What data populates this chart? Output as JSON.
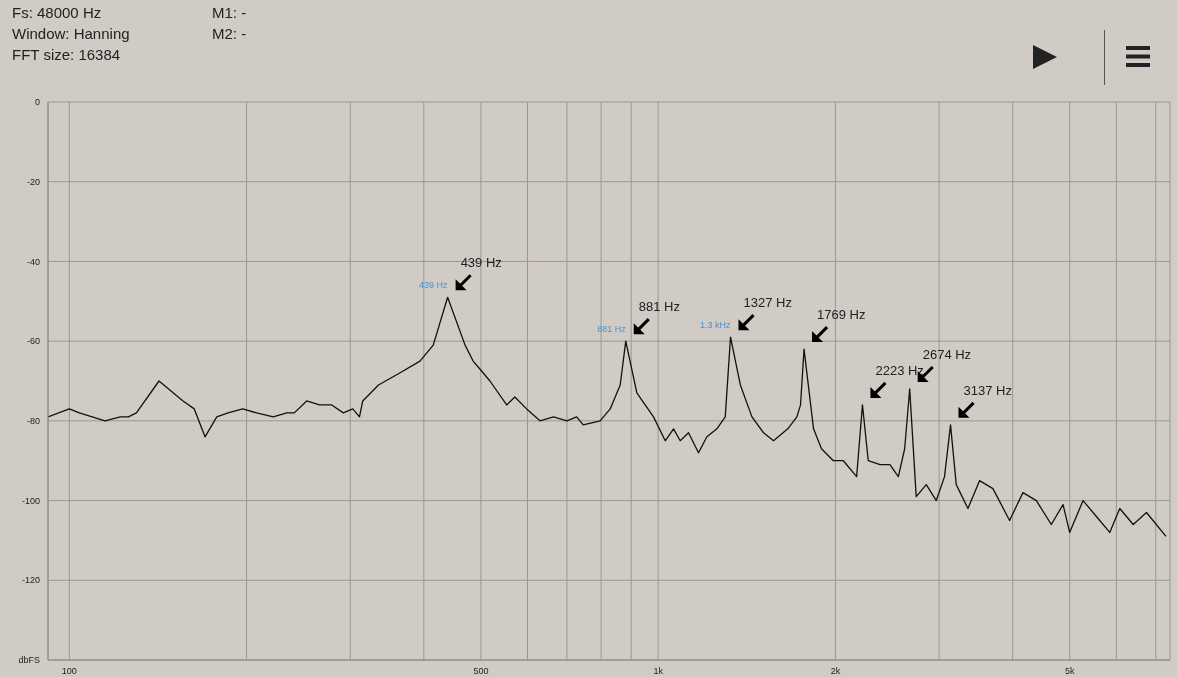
{
  "chart_data": {
    "type": "line",
    "log": "x",
    "grid": true,
    "xlim": [
      92,
      7400
    ],
    "xticks": [
      100,
      {
        "value": 200,
        "label": null
      },
      {
        "value": 300,
        "label": null
      },
      {
        "value": 400,
        "label": null
      },
      500,
      {
        "value": 600,
        "label": null
      },
      {
        "value": 700,
        "label": null
      },
      {
        "value": 800,
        "label": null
      },
      {
        "value": 900,
        "label": null
      },
      {
        "value": 1000,
        "label": "1k"
      },
      {
        "value": 2000,
        "label": "2k"
      },
      {
        "value": 3000,
        "label": null
      },
      {
        "value": 4000,
        "label": null
      },
      {
        "value": 5000,
        "label": "5k"
      },
      {
        "value": 6000,
        "label": null
      },
      {
        "value": 7000,
        "label": null
      }
    ],
    "ylim": [
      -140,
      0
    ],
    "yticks": [
      0,
      -20,
      -40,
      -60,
      -80,
      -100,
      -120,
      {
        "value": -140,
        "label": "dbFS"
      }
    ],
    "x": [
      92,
      100,
      104,
      115,
      122,
      126,
      130,
      142,
      156,
      163,
      170,
      178,
      186,
      197,
      208,
      222,
      234,
      241,
      253,
      266,
      279,
      292,
      303,
      311,
      315,
      335,
      364,
      394,
      415,
      439,
      470,
      485,
      498,
      518,
      553,
      571,
      598,
      630,
      664,
      700,
      727,
      746,
      797,
      829,
      862,
      881,
      920,
      982,
      1028,
      1062,
      1090,
      1126,
      1171,
      1210,
      1258,
      1300,
      1327,
      1379,
      1443,
      1510,
      1570,
      1660,
      1720,
      1745,
      1769,
      1836,
      1894,
      1984,
      2063,
      2173,
      2223,
      2274,
      2381,
      2475,
      2558,
      2622,
      2674,
      2743,
      2853,
      2967,
      3064,
      3137,
      3208,
      3358,
      3514,
      3703,
      3952,
      4164,
      4388,
      4652,
      4871,
      4998,
      5267,
      5549,
      5847,
      6080,
      6409,
      6750,
      7284
    ],
    "series": [
      {
        "color": "#111111",
        "values": [
          -79,
          -77,
          -78,
          -80,
          -79,
          -79,
          -78,
          -70,
          -75,
          -77,
          -84,
          -79,
          -78,
          -77,
          -78,
          -79,
          -78,
          -78,
          -75,
          -76,
          -76,
          -78,
          -77,
          -79,
          -75,
          -71,
          -68,
          -65,
          -61,
          -49,
          -61,
          -65,
          -67,
          -70,
          -76,
          -74,
          -77,
          -80,
          -79,
          -80,
          -79,
          -81,
          -80,
          -77,
          -71,
          -60,
          -73,
          -79,
          -85,
          -82,
          -85,
          -83,
          -88,
          -84,
          -82,
          -79,
          -59,
          -71,
          -79,
          -83,
          -85,
          -82,
          -79,
          -76,
          -62,
          -82,
          -87,
          -90,
          -90,
          -94,
          -76,
          -90,
          -91,
          -91,
          -94,
          -87,
          -72,
          -99,
          -96,
          -100,
          -94,
          -81,
          -96,
          -102,
          -95,
          -97,
          -105,
          -98,
          -100,
          -106,
          -101,
          -108,
          -100,
          -104,
          -108,
          -102,
          -106,
          -103,
          -109
        ]
      }
    ],
    "annotations": [
      "Fs: 48000 Hz",
      "Window: Hanning",
      "FFT size: 16384",
      "M1: -",
      "M2: -",
      {
        "text": "439 Hz",
        "x": 439,
        "y": -49
      },
      {
        "text": "881 Hz",
        "x": 881,
        "y": -60
      },
      {
        "text": "1327 Hz",
        "x": 1327,
        "y": -59
      },
      {
        "text": "1769 Hz",
        "x": 1769,
        "y": -62
      },
      {
        "text": "2223 Hz",
        "x": 2223,
        "y": -76
      },
      {
        "text": "2674 Hz",
        "x": 2674,
        "y": -72
      },
      {
        "text": "3137 Hz",
        "x": 3137,
        "y": -81
      },
      {
        "text": "439 Hz",
        "x": 439,
        "y": -49
      },
      {
        "text": "881 Hz",
        "x": 881,
        "y": -60
      },
      {
        "text": "1.3  kHz",
        "x": 1327,
        "y": -59
      }
    ]
  }
}
